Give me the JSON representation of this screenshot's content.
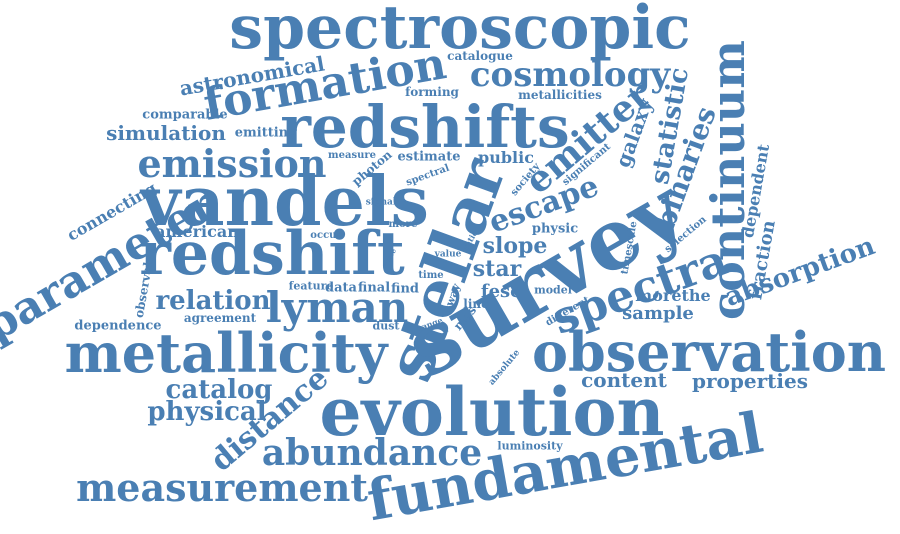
{
  "colors": {
    "word": "#4a7fb3",
    "background": "#ffffff"
  },
  "words": [
    "spectroscopic",
    "formation",
    "cosmology",
    "astronomical",
    "catalogue",
    "redshifts",
    "comparable",
    "simulation",
    "emitting",
    "forming",
    "metallicities",
    "emitter",
    "galaxy",
    "statistic",
    "continuum",
    "binaries",
    "emission",
    "measure",
    "photon",
    "estimate",
    "public",
    "spectral",
    "significant",
    "society",
    "stellar",
    "vandels",
    "escape",
    "parameter",
    "connecting",
    "signal",
    "american",
    "redshift",
    "occur",
    "more",
    "survey",
    "slope",
    "physic",
    "timescale",
    "selection",
    "dependent",
    "fraction",
    "observable",
    "noise",
    "value",
    "ratio",
    "spectra",
    "star",
    "absorption",
    "time",
    "feature",
    "data",
    "final",
    "find",
    "fesc",
    "model",
    "morethe",
    "lyman",
    "relation",
    "way",
    "line",
    "different",
    "sample",
    "dependence",
    "agreement",
    "dust",
    "range",
    "mas",
    "metallicity",
    "observation",
    "absolute",
    "content",
    "properties",
    "catalog",
    "evolution",
    "physical",
    "distance",
    "abundance",
    "luminosity",
    "fundamental",
    "measurement"
  ]
}
